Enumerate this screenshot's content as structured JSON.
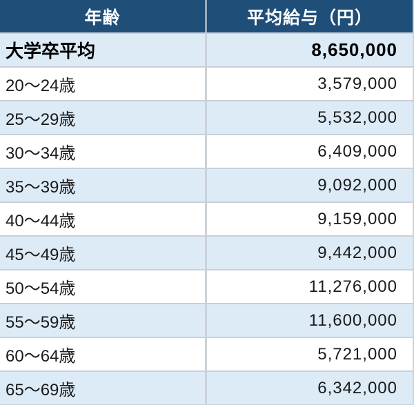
{
  "table": {
    "columns": [
      {
        "label": "年齢"
      },
      {
        "label": "平均給与（円）"
      }
    ],
    "rows": [
      {
        "age": "大学卒平均",
        "salary": "8,650,000",
        "emphasis": true,
        "shaded": true
      },
      {
        "age": "20〜24歳",
        "salary": "3,579,000",
        "emphasis": false,
        "shaded": false
      },
      {
        "age": "25〜29歳",
        "salary": "5,532,000",
        "emphasis": false,
        "shaded": true
      },
      {
        "age": "30〜34歳",
        "salary": "6,409,000",
        "emphasis": false,
        "shaded": false
      },
      {
        "age": "35〜39歳",
        "salary": "9,092,000",
        "emphasis": false,
        "shaded": true
      },
      {
        "age": "40〜44歳",
        "salary": "9,159,000",
        "emphasis": false,
        "shaded": false
      },
      {
        "age": "45〜49歳",
        "salary": "9,442,000",
        "emphasis": false,
        "shaded": true
      },
      {
        "age": "50〜54歳",
        "salary": "11,276,000",
        "emphasis": false,
        "shaded": false
      },
      {
        "age": "55〜59歳",
        "salary": "11,600,000",
        "emphasis": false,
        "shaded": true
      },
      {
        "age": "60〜64歳",
        "salary": "5,721,000",
        "emphasis": false,
        "shaded": false
      },
      {
        "age": "65〜69歳",
        "salary": "6,342,000",
        "emphasis": false,
        "shaded": true
      }
    ]
  },
  "colors": {
    "header_bg": "#1F4E79",
    "header_text": "#FFFFFF",
    "row_alt_bg": "#DDEBF7",
    "row_bg": "#FFFFFF",
    "border_h": "#C9D0D7",
    "border_v": "#CBD2D9",
    "text": "#1A1A1A",
    "text_strong": "#000000"
  },
  "chart_data": {
    "type": "table",
    "title": "",
    "columns": [
      "年齢",
      "平均給与（円）"
    ],
    "rows": [
      [
        "大学卒平均",
        8650000
      ],
      [
        "20〜24歳",
        3579000
      ],
      [
        "25〜29歳",
        5532000
      ],
      [
        "30〜34歳",
        6409000
      ],
      [
        "35〜39歳",
        9092000
      ],
      [
        "40〜44歳",
        9159000
      ],
      [
        "45〜49歳",
        9442000
      ],
      [
        "50〜54歳",
        11276000
      ],
      [
        "55〜59歳",
        11600000
      ],
      [
        "60〜64歳",
        5721000
      ],
      [
        "65〜69歳",
        6342000
      ]
    ]
  }
}
